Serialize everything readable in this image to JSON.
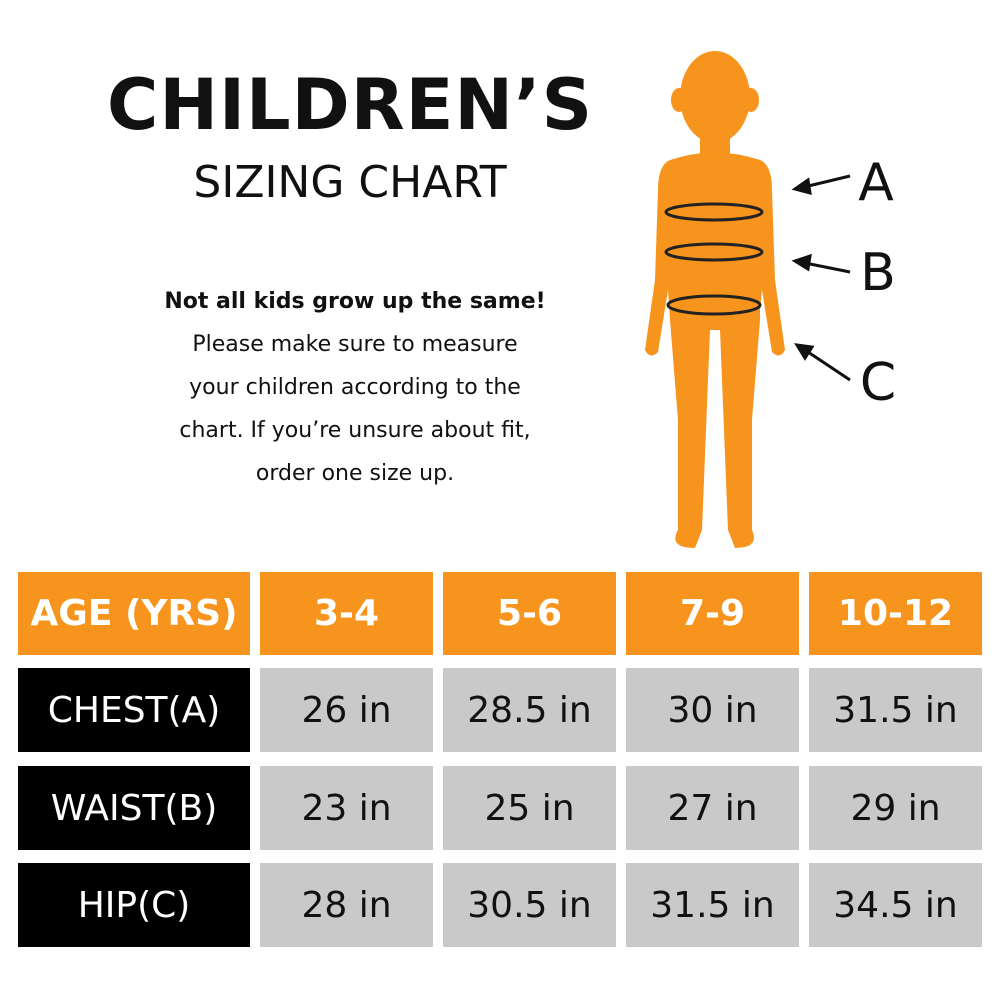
{
  "header": {
    "title": "CHILDREN’S",
    "subtitle": "SIZING CHART"
  },
  "intro": {
    "lead": "Not all kids grow up the same!",
    "lines": [
      "Please make sure to measure",
      "your children according to the",
      "chart. If you’re unsure about fit,",
      "order one size up."
    ]
  },
  "figure": {
    "labels": [
      "A",
      "B",
      "C"
    ]
  },
  "table": {
    "header": [
      "AGE (YRS)",
      "3-4",
      "5-6",
      "7-9",
      "10-12"
    ],
    "rows": [
      [
        "CHEST(A)",
        "26 in",
        "28.5 in",
        "30 in",
        "31.5 in"
      ],
      [
        "WAIST(B)",
        "23 in",
        "25 in",
        "27 in",
        "29 in"
      ],
      [
        "HIP(C)",
        "28 in",
        "30.5 in",
        "31.5 in",
        "34.5 in"
      ]
    ]
  }
}
